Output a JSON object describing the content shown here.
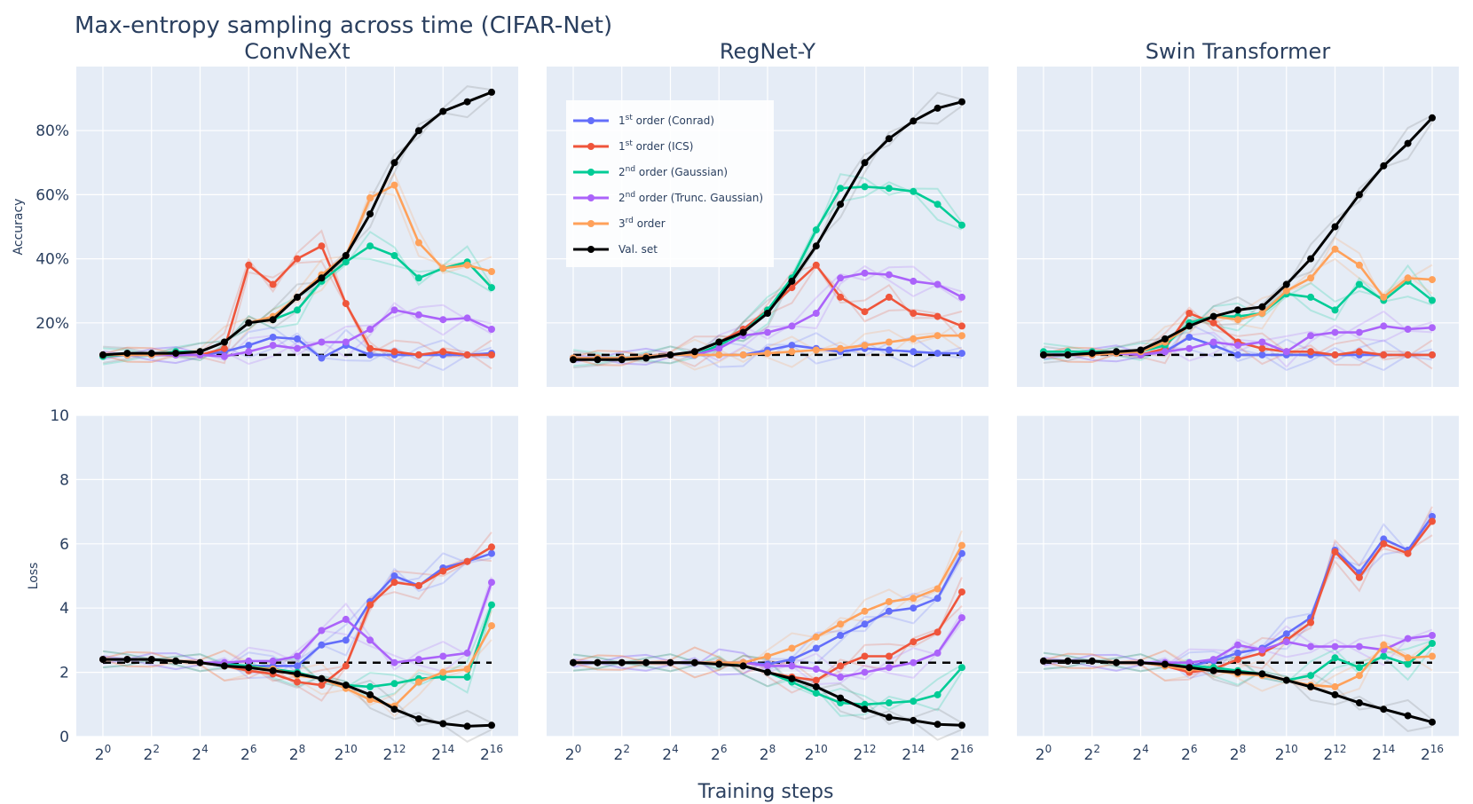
{
  "title": "Max-entropy sampling across time (CIFAR-Net)",
  "xlabel": "Training steps",
  "colors": {
    "plot_bg": "#e5ecf6",
    "grid": "#ffffff",
    "text": "#2a3f5f",
    "conrad": "#636efa",
    "ics": "#ef553b",
    "gaussian": "#00cc96",
    "trunc": "#ab63fa",
    "third": "#ffa15a",
    "val": "#000000"
  },
  "legend": {
    "items": [
      {
        "key": "conrad",
        "base": "1",
        "sup": "st",
        "rest": " order (Conrad)"
      },
      {
        "key": "ics",
        "base": "1",
        "sup": "st",
        "rest": " order (ICS)"
      },
      {
        "key": "gaussian",
        "base": "2",
        "sup": "nd",
        "rest": " order (Gaussian)"
      },
      {
        "key": "trunc",
        "base": "2",
        "sup": "nd",
        "rest": " order (Trunc. Gaussian)"
      },
      {
        "key": "third",
        "base": "3",
        "sup": "rd",
        "rest": " order"
      },
      {
        "key": "val",
        "base": "Val. set",
        "sup": "",
        "rest": ""
      }
    ]
  },
  "chart_data": {
    "type": "line",
    "x_scale": "log2",
    "x_exponents": [
      0,
      1,
      2,
      3,
      4,
      5,
      6,
      7,
      8,
      9,
      10,
      11,
      12,
      13,
      14,
      15,
      16
    ],
    "x_tick_exponents": [
      "0",
      "2",
      "4",
      "6",
      "8",
      "10",
      "12",
      "14",
      "16"
    ],
    "x_tick_base": "2",
    "rows": [
      {
        "ylabel": "Accuracy",
        "ylim": [
          0,
          100
        ],
        "yticks": [
          "20%",
          "40%",
          "60%",
          "80%"
        ],
        "ytick_values": [
          20,
          40,
          60,
          80
        ],
        "baseline": 10
      },
      {
        "ylabel": "Loss",
        "ylim": [
          0,
          10
        ],
        "yticks": [
          "0",
          "2",
          "4",
          "6",
          "8",
          "10"
        ],
        "ytick_values": [
          0,
          2,
          4,
          6,
          8,
          10
        ],
        "baseline": 2.3
      }
    ],
    "panels": [
      {
        "title": "ConvNeXt",
        "accuracy": {
          "conrad": [
            10,
            10,
            10,
            10,
            10,
            11,
            13,
            15.5,
            15,
            9,
            13,
            10,
            10,
            10,
            10,
            10,
            10.5
          ],
          "ics": [
            10,
            10,
            10,
            10,
            10,
            12,
            38,
            32,
            40,
            44,
            26,
            12,
            11,
            10,
            11,
            10,
            10
          ],
          "gaussian": [
            9.5,
            10,
            10,
            11,
            11,
            14,
            20,
            21,
            24,
            33,
            39,
            44,
            41,
            34,
            37,
            39,
            31
          ],
          "trunc": [
            10,
            10,
            10,
            10,
            10,
            9.5,
            11,
            13,
            12,
            14,
            14,
            18,
            24,
            22.5,
            21,
            21.5,
            18
          ],
          "third": [
            10,
            10,
            10,
            10.5,
            11,
            14,
            20,
            22,
            28,
            35,
            41,
            59,
            63,
            45,
            37,
            38,
            36
          ],
          "val": [
            10,
            10.5,
            10.5,
            10.5,
            11,
            14,
            20,
            21,
            28,
            34,
            41,
            54,
            70,
            80,
            86,
            89,
            92
          ]
        },
        "loss": {
          "conrad": [
            2.4,
            2.4,
            2.4,
            2.35,
            2.3,
            2.25,
            2.2,
            2.2,
            2.2,
            2.85,
            3.0,
            4.2,
            5.0,
            4.7,
            5.25,
            5.45,
            5.7
          ],
          "ics": [
            2.4,
            2.4,
            2.4,
            2.35,
            2.3,
            2.2,
            2.05,
            1.95,
            1.7,
            1.6,
            2.2,
            4.1,
            4.8,
            4.7,
            5.15,
            5.45,
            5.9
          ],
          "gaussian": [
            2.4,
            2.4,
            2.4,
            2.35,
            2.3,
            2.25,
            2.2,
            2.1,
            2.0,
            1.8,
            1.6,
            1.55,
            1.65,
            1.8,
            1.85,
            1.85,
            4.1
          ],
          "trunc": [
            2.4,
            2.4,
            2.4,
            2.35,
            2.3,
            2.3,
            2.35,
            2.35,
            2.5,
            3.3,
            3.65,
            3.0,
            2.3,
            2.4,
            2.5,
            2.6,
            4.8
          ],
          "third": [
            2.4,
            2.4,
            2.4,
            2.35,
            2.3,
            2.2,
            2.15,
            2.1,
            1.9,
            1.8,
            1.5,
            1.15,
            0.95,
            1.7,
            2.0,
            2.1,
            3.45
          ],
          "val": [
            2.4,
            2.4,
            2.4,
            2.35,
            2.3,
            2.2,
            2.15,
            2.05,
            1.95,
            1.8,
            1.6,
            1.3,
            0.85,
            0.55,
            0.4,
            0.32,
            0.35
          ]
        }
      },
      {
        "title": "RegNet-Y",
        "accuracy": {
          "conrad": [
            9,
            9,
            9,
            9.5,
            10,
            10,
            10,
            10,
            11.5,
            13,
            12,
            11,
            12,
            11.5,
            11,
            10.5,
            10.5
          ],
          "ics": [
            9,
            9,
            9,
            9.5,
            10,
            11,
            14,
            18,
            24,
            31,
            38,
            28,
            23.5,
            28,
            23,
            22,
            19
          ],
          "gaussian": [
            9,
            9,
            9,
            9.5,
            10,
            10,
            13,
            17,
            24,
            34,
            49,
            62,
            62.5,
            62,
            61,
            57,
            50.5
          ],
          "trunc": [
            9,
            9,
            9,
            9.5,
            10,
            10,
            12,
            16,
            17,
            19,
            23,
            34,
            35.5,
            35,
            33,
            32,
            28
          ],
          "third": [
            9,
            9,
            9,
            9.5,
            10,
            10,
            10,
            10,
            10.5,
            11,
            11.5,
            12,
            13,
            14,
            15,
            16,
            16
          ],
          "val": [
            8.5,
            8.5,
            8.5,
            9,
            10,
            11,
            14,
            17,
            23,
            33,
            44,
            57,
            70,
            77.5,
            83,
            87,
            89
          ]
        },
        "loss": {
          "conrad": [
            2.3,
            2.3,
            2.3,
            2.3,
            2.3,
            2.3,
            2.3,
            2.3,
            2.25,
            2.4,
            2.75,
            3.15,
            3.5,
            3.9,
            4.0,
            4.3,
            5.7
          ],
          "ics": [
            2.3,
            2.3,
            2.3,
            2.3,
            2.3,
            2.3,
            2.3,
            2.2,
            2.0,
            1.85,
            1.75,
            2.2,
            2.5,
            2.5,
            2.95,
            3.25,
            4.5
          ],
          "gaussian": [
            2.3,
            2.3,
            2.3,
            2.3,
            2.3,
            2.3,
            2.3,
            2.2,
            2.0,
            1.7,
            1.35,
            1.05,
            1.0,
            1.05,
            1.1,
            1.3,
            2.15
          ],
          "trunc": [
            2.3,
            2.3,
            2.3,
            2.3,
            2.3,
            2.3,
            2.3,
            2.3,
            2.2,
            2.2,
            2.1,
            1.85,
            2.0,
            2.15,
            2.3,
            2.6,
            3.7
          ],
          "third": [
            2.3,
            2.3,
            2.3,
            2.3,
            2.3,
            2.3,
            2.3,
            2.3,
            2.5,
            2.75,
            3.1,
            3.5,
            3.9,
            4.2,
            4.3,
            4.6,
            5.95
          ],
          "val": [
            2.3,
            2.3,
            2.3,
            2.3,
            2.3,
            2.3,
            2.25,
            2.2,
            2.0,
            1.8,
            1.55,
            1.2,
            0.85,
            0.6,
            0.5,
            0.38,
            0.35
          ]
        }
      },
      {
        "title": "Swin Transformer",
        "accuracy": {
          "conrad": [
            10,
            10,
            10,
            10.5,
            10,
            11,
            15.5,
            13,
            10,
            10,
            10,
            10,
            10,
            10,
            10,
            10,
            10
          ],
          "ics": [
            10,
            10,
            10,
            10.5,
            10,
            12,
            23,
            20,
            14,
            12,
            11,
            11,
            10,
            11,
            10,
            10,
            10
          ],
          "gaussian": [
            11,
            11,
            11,
            11,
            11,
            13,
            20,
            22,
            22,
            23,
            29,
            28,
            24,
            32,
            27,
            33,
            27
          ],
          "trunc": [
            10,
            10,
            10,
            10.5,
            10,
            11,
            12,
            14,
            13,
            14,
            11,
            16,
            17,
            17,
            19,
            18,
            18.5
          ],
          "third": [
            10,
            10,
            10,
            10.5,
            11,
            14,
            19,
            22,
            21,
            23,
            30,
            34,
            43,
            38,
            28,
            34,
            33.5
          ],
          "val": [
            10,
            10,
            10.5,
            11,
            11.5,
            15,
            19,
            22,
            24,
            25,
            32,
            40,
            50,
            60,
            69,
            76,
            84
          ]
        },
        "loss": {
          "conrad": [
            2.35,
            2.35,
            2.35,
            2.3,
            2.3,
            2.25,
            2.2,
            2.35,
            2.6,
            2.75,
            3.2,
            3.7,
            5.8,
            5.1,
            6.15,
            5.8,
            6.85
          ],
          "ics": [
            2.35,
            2.35,
            2.35,
            2.3,
            2.3,
            2.2,
            2.0,
            2.1,
            2.4,
            2.6,
            3.0,
            3.55,
            5.75,
            4.95,
            6.0,
            5.7,
            6.7
          ],
          "gaussian": [
            2.35,
            2.35,
            2.35,
            2.3,
            2.3,
            2.25,
            2.2,
            2.15,
            2.05,
            1.95,
            1.75,
            1.9,
            2.45,
            2.15,
            2.5,
            2.25,
            2.9
          ],
          "trunc": [
            2.35,
            2.35,
            2.35,
            2.3,
            2.3,
            2.3,
            2.3,
            2.4,
            2.85,
            2.7,
            2.95,
            2.8,
            2.8,
            2.8,
            2.7,
            3.05,
            3.15
          ],
          "third": [
            2.35,
            2.35,
            2.35,
            2.3,
            2.3,
            2.2,
            2.1,
            2.05,
            1.95,
            1.9,
            1.75,
            1.6,
            1.55,
            1.9,
            2.85,
            2.45,
            2.5
          ],
          "val": [
            2.35,
            2.35,
            2.35,
            2.3,
            2.3,
            2.25,
            2.15,
            2.05,
            2.0,
            1.95,
            1.75,
            1.55,
            1.3,
            1.05,
            0.85,
            0.65,
            0.45
          ]
        }
      }
    ]
  }
}
